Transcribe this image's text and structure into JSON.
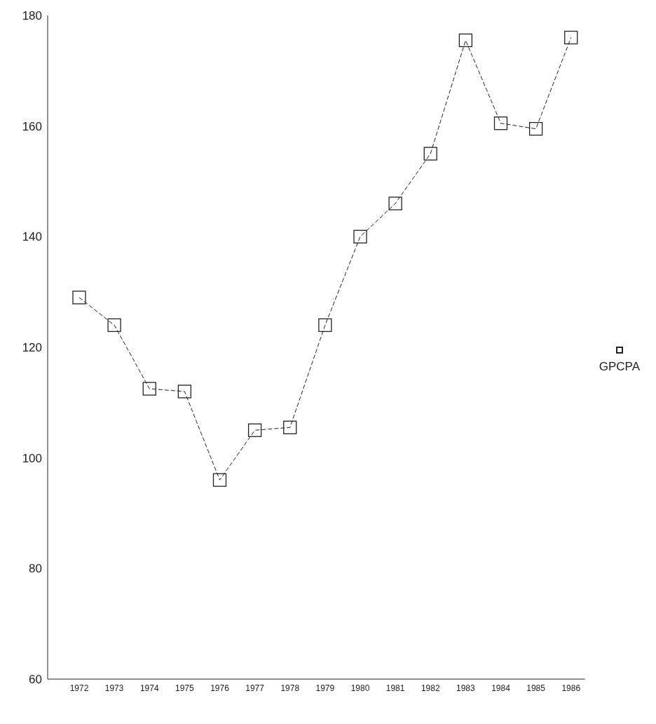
{
  "chart_data": {
    "type": "line",
    "categories": [
      "1972",
      "1973",
      "1974",
      "1975",
      "1976",
      "1977",
      "1978",
      "1979",
      "1980",
      "1981",
      "1982",
      "1983",
      "1984",
      "1985",
      "1986"
    ],
    "series": [
      {
        "name": "GPCPA",
        "color": "#222222",
        "values": [
          129,
          124,
          112.5,
          112,
          96,
          105,
          105.5,
          124,
          140,
          146,
          155,
          175.5,
          160.5,
          159.5,
          176
        ]
      }
    ],
    "ylim": [
      60,
      180
    ],
    "yticks": [
      60,
      80,
      100,
      120,
      140,
      160,
      180
    ],
    "grid": false,
    "legend": "right",
    "marker": "square",
    "line_style": "dashed"
  }
}
